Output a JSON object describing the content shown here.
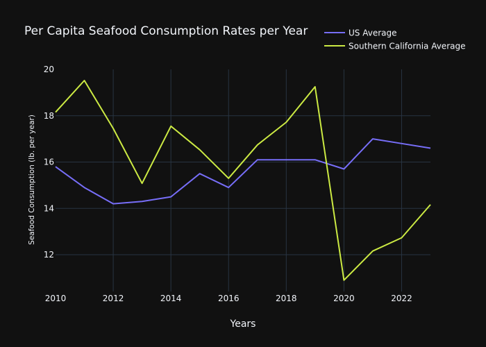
{
  "chart_data": {
    "type": "line",
    "title": "Per Capita Seafood Consumption Rates per Year",
    "xlabel": "Years",
    "ylabel": "Seafood Consumption (lb. per year)",
    "x": [
      2010,
      2011,
      2012,
      2013,
      2014,
      2015,
      2016,
      2017,
      2018,
      2019,
      2020,
      2021,
      2022,
      2023
    ],
    "xlim": [
      2010,
      2023
    ],
    "ylim": [
      10.6,
      20
    ],
    "x_ticks": [
      2010,
      2012,
      2014,
      2016,
      2018,
      2020,
      2022
    ],
    "y_ticks": [
      12,
      14,
      16,
      18,
      20
    ],
    "grid": true,
    "legend_position": "top-right",
    "series": [
      {
        "name": "US Average",
        "color": "#776ef8",
        "values": [
          15.8,
          14.9,
          14.2,
          14.3,
          14.5,
          15.5,
          14.9,
          16.1,
          16.1,
          16.1,
          15.7,
          17.0,
          16.8,
          16.6
        ]
      },
      {
        "name": "Southern California Average",
        "color": "#ccea43",
        "values": [
          18.15,
          19.52,
          17.45,
          15.08,
          17.55,
          16.53,
          15.3,
          16.74,
          17.72,
          19.25,
          10.9,
          12.16,
          12.73,
          14.16
        ]
      }
    ]
  }
}
